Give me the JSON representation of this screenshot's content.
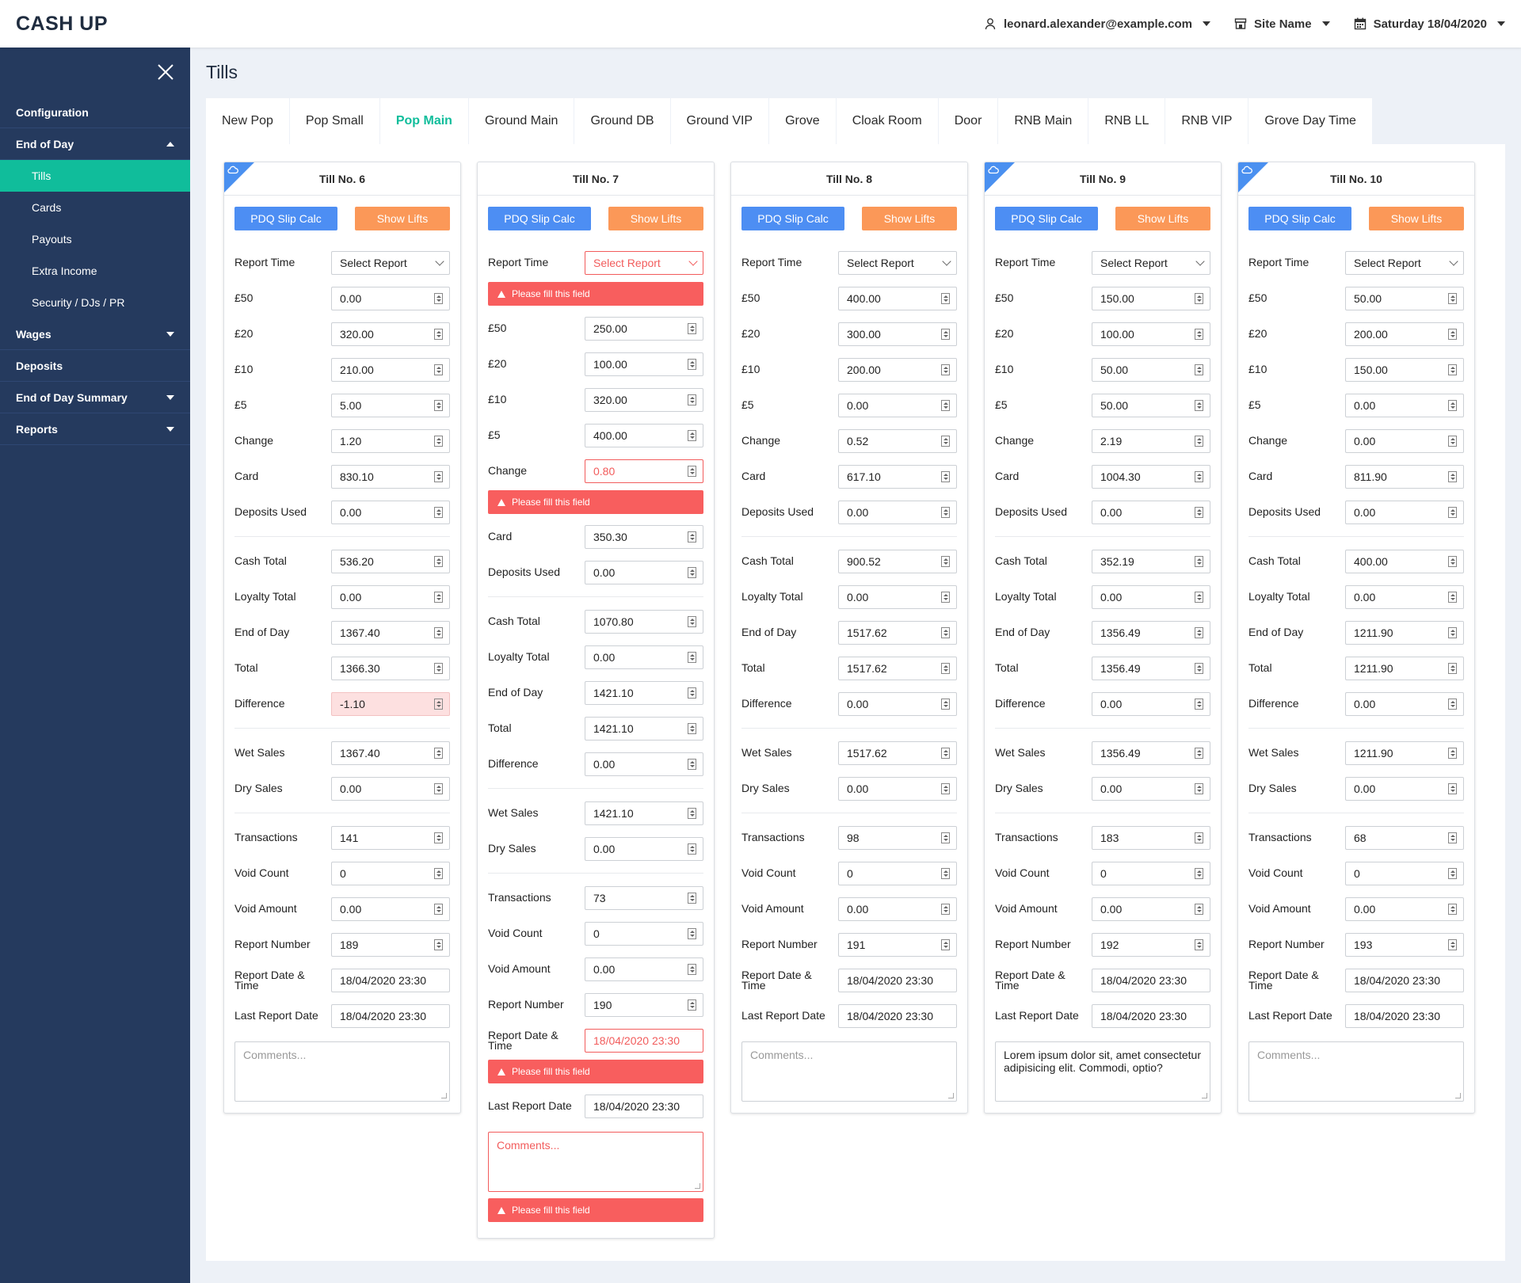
{
  "app": {
    "title": "CASH UP"
  },
  "header": {
    "user": "leonard.alexander@example.com",
    "site": "Site Name",
    "date": "Saturday 18/04/2020"
  },
  "sidebar": {
    "items": [
      {
        "label": "Configuration",
        "caret": ""
      },
      {
        "label": "End of Day",
        "caret": "up",
        "subs": [
          "Tills",
          "Cards",
          "Payouts",
          "Extra Income",
          "Security / DJs / PR"
        ],
        "active_sub": "Tills"
      },
      {
        "label": "Wages",
        "caret": "down"
      },
      {
        "label": "Deposits",
        "caret": ""
      },
      {
        "label": "End of Day Summary",
        "caret": "down"
      },
      {
        "label": "Reports",
        "caret": "down"
      }
    ]
  },
  "page": {
    "title": "Tills"
  },
  "tabs": [
    "New Pop",
    "Pop Small",
    "Pop Main",
    "Ground Main",
    "Ground DB",
    "Ground VIP",
    "Grove",
    "Cloak Room",
    "Door",
    "RNB Main",
    "RNB LL",
    "RNB VIP",
    "Grove Day Time"
  ],
  "active_tab": "Pop Main",
  "labels": {
    "pdq": "PDQ Slip Calc",
    "lifts": "Show Lifts",
    "report_time": "Report Time",
    "select_report": "Select Report",
    "error": "Please fill this field",
    "comments_placeholder": "Comments..."
  },
  "colors": {
    "accent": "#10bd9b",
    "sidebar": "#253a5e",
    "blue": "#4d8ef3",
    "orange": "#fb9858",
    "error": "#f85e5e"
  },
  "tills": [
    {
      "name": "Till No. 6",
      "corner": true,
      "report_error": false,
      "groups": [
        [
          [
            "£50",
            "0.00"
          ],
          [
            "£20",
            "320.00"
          ],
          [
            "£10",
            "210.00"
          ],
          [
            "£5",
            "5.00"
          ],
          [
            "Change",
            "1.20"
          ],
          [
            "Card",
            "830.10"
          ],
          [
            "Deposits Used",
            "0.00"
          ]
        ],
        [
          [
            "Cash Total",
            "536.20"
          ],
          [
            "Loyalty Total",
            "0.00"
          ],
          [
            "End of Day",
            "1367.40"
          ],
          [
            "Total",
            "1366.30"
          ],
          [
            "Difference",
            "-1.10",
            "warn"
          ]
        ],
        [
          [
            "Wet Sales",
            "1367.40"
          ],
          [
            "Dry Sales",
            "0.00"
          ]
        ],
        [
          [
            "Transactions",
            "141"
          ],
          [
            "Void Count",
            "0"
          ],
          [
            "Void Amount",
            "0.00"
          ],
          [
            "Report Number",
            "189"
          ],
          [
            "Report Date & Time",
            "18/04/2020 23:30",
            "plain"
          ],
          [
            "Last Report Date",
            "18/04/2020 23:30",
            "plain"
          ]
        ]
      ],
      "comment": "",
      "comment_error": false
    },
    {
      "name": "Till No. 7",
      "corner": false,
      "report_error": true,
      "groups": [
        [
          [
            "£50",
            "250.00"
          ],
          [
            "£20",
            "100.00"
          ],
          [
            "£10",
            "320.00"
          ],
          [
            "£5",
            "400.00"
          ],
          [
            "Change",
            "0.80",
            "error"
          ],
          [
            "Card",
            "350.30"
          ],
          [
            "Deposits Used",
            "0.00"
          ]
        ],
        [
          [
            "Cash Total",
            "1070.80"
          ],
          [
            "Loyalty Total",
            "0.00"
          ],
          [
            "End of Day",
            "1421.10"
          ],
          [
            "Total",
            "1421.10"
          ],
          [
            "Difference",
            "0.00"
          ]
        ],
        [
          [
            "Wet Sales",
            "1421.10"
          ],
          [
            "Dry Sales",
            "0.00"
          ]
        ],
        [
          [
            "Transactions",
            "73"
          ],
          [
            "Void Count",
            "0"
          ],
          [
            "Void Amount",
            "0.00"
          ],
          [
            "Report Number",
            "190"
          ],
          [
            "Report Date & Time",
            "18/04/2020 23:30",
            "plainerror"
          ],
          [
            "Last Report Date",
            "18/04/2020 23:30",
            "plain"
          ]
        ]
      ],
      "comment": "",
      "comment_error": true
    },
    {
      "name": "Till No. 8",
      "corner": false,
      "report_error": false,
      "groups": [
        [
          [
            "£50",
            "400.00"
          ],
          [
            "£20",
            "300.00"
          ],
          [
            "£10",
            "200.00"
          ],
          [
            "£5",
            "0.00"
          ],
          [
            "Change",
            "0.52"
          ],
          [
            "Card",
            "617.10"
          ],
          [
            "Deposits Used",
            "0.00"
          ]
        ],
        [
          [
            "Cash Total",
            "900.52"
          ],
          [
            "Loyalty Total",
            "0.00"
          ],
          [
            "End of Day",
            "1517.62"
          ],
          [
            "Total",
            "1517.62"
          ],
          [
            "Difference",
            "0.00"
          ]
        ],
        [
          [
            "Wet Sales",
            "1517.62"
          ],
          [
            "Dry Sales",
            "0.00"
          ]
        ],
        [
          [
            "Transactions",
            "98"
          ],
          [
            "Void Count",
            "0"
          ],
          [
            "Void Amount",
            "0.00"
          ],
          [
            "Report Number",
            "191"
          ],
          [
            "Report Date & Time",
            "18/04/2020 23:30",
            "plain"
          ],
          [
            "Last Report Date",
            "18/04/2020 23:30",
            "plain"
          ]
        ]
      ],
      "comment": "",
      "comment_error": false
    },
    {
      "name": "Till No. 9",
      "corner": true,
      "report_error": false,
      "groups": [
        [
          [
            "£50",
            "150.00"
          ],
          [
            "£20",
            "100.00"
          ],
          [
            "£10",
            "50.00"
          ],
          [
            "£5",
            "50.00"
          ],
          [
            "Change",
            "2.19"
          ],
          [
            "Card",
            "1004.30"
          ],
          [
            "Deposits Used",
            "0.00"
          ]
        ],
        [
          [
            "Cash Total",
            "352.19"
          ],
          [
            "Loyalty Total",
            "0.00"
          ],
          [
            "End of Day",
            "1356.49"
          ],
          [
            "Total",
            "1356.49"
          ],
          [
            "Difference",
            "0.00"
          ]
        ],
        [
          [
            "Wet Sales",
            "1356.49"
          ],
          [
            "Dry Sales",
            "0.00"
          ]
        ],
        [
          [
            "Transactions",
            "183"
          ],
          [
            "Void Count",
            "0"
          ],
          [
            "Void Amount",
            "0.00"
          ],
          [
            "Report Number",
            "192"
          ],
          [
            "Report Date & Time",
            "18/04/2020 23:30",
            "plain"
          ],
          [
            "Last Report Date",
            "18/04/2020 23:30",
            "plain"
          ]
        ]
      ],
      "comment": "Lorem ipsum dolor sit, amet consectetur adipisicing elit. Commodi, optio?",
      "comment_error": false
    },
    {
      "name": "Till No. 10",
      "corner": true,
      "report_error": false,
      "groups": [
        [
          [
            "£50",
            "50.00"
          ],
          [
            "£20",
            "200.00"
          ],
          [
            "£10",
            "150.00"
          ],
          [
            "£5",
            "0.00"
          ],
          [
            "Change",
            "0.00"
          ],
          [
            "Card",
            "811.90"
          ],
          [
            "Deposits Used",
            "0.00"
          ]
        ],
        [
          [
            "Cash Total",
            "400.00"
          ],
          [
            "Loyalty Total",
            "0.00"
          ],
          [
            "End of Day",
            "1211.90"
          ],
          [
            "Total",
            "1211.90"
          ],
          [
            "Difference",
            "0.00"
          ]
        ],
        [
          [
            "Wet Sales",
            "1211.90"
          ],
          [
            "Dry Sales",
            "0.00"
          ]
        ],
        [
          [
            "Transactions",
            "68"
          ],
          [
            "Void Count",
            "0"
          ],
          [
            "Void Amount",
            "0.00"
          ],
          [
            "Report Number",
            "193"
          ],
          [
            "Report Date & Time",
            "18/04/2020 23:30",
            "plain"
          ],
          [
            "Last Report Date",
            "18/04/2020 23:30",
            "plain"
          ]
        ]
      ],
      "comment": "",
      "comment_error": false
    }
  ]
}
